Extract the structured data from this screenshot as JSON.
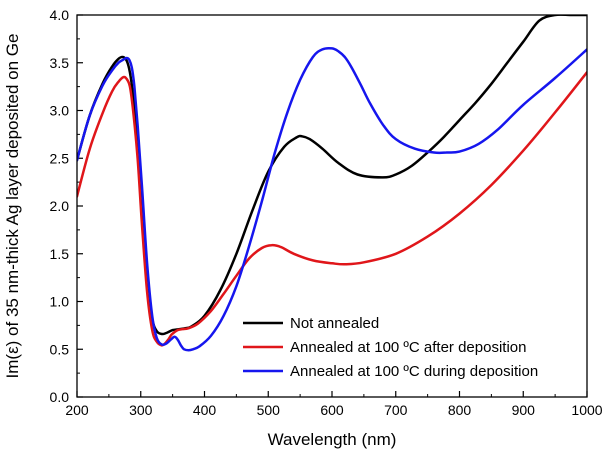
{
  "chart_data": {
    "type": "line",
    "title": "",
    "xlabel": "Wavelength (nm)",
    "ylabel": "Im(ε) of 35 nm-thick Ag layer deposited on Ge",
    "xlim": [
      200,
      1000
    ],
    "ylim": [
      0.0,
      4.0
    ],
    "xticks": [
      200,
      300,
      400,
      500,
      600,
      700,
      800,
      900,
      1000
    ],
    "yticks": [
      0.0,
      0.5,
      1.0,
      1.5,
      2.0,
      2.5,
      3.0,
      3.5,
      4.0
    ],
    "xtick_labels": [
      "200",
      "300",
      "400",
      "500",
      "600",
      "700",
      "800",
      "900",
      "1000"
    ],
    "ytick_labels": [
      "0.0",
      "0.5",
      "1.0",
      "1.5",
      "2.0",
      "2.5",
      "3.0",
      "3.5",
      "4.0"
    ],
    "legend_position": "bottom-right",
    "series": [
      {
        "name": "Not annealed",
        "color": "#000000",
        "x": [
          200,
          220,
          240,
          255,
          265,
          272,
          278,
          283,
          288,
          295,
          302,
          310,
          318,
          325,
          333,
          340,
          350,
          360,
          370,
          380,
          400,
          425,
          450,
          475,
          500,
          525,
          545,
          553,
          565,
          585,
          610,
          640,
          680,
          700,
          725,
          750,
          775,
          800,
          825,
          850,
          875,
          900,
          925,
          950,
          975,
          1000
        ],
        "y": [
          2.48,
          2.95,
          3.28,
          3.46,
          3.54,
          3.56,
          3.52,
          3.4,
          3.15,
          2.6,
          1.9,
          1.2,
          0.82,
          0.69,
          0.66,
          0.67,
          0.7,
          0.71,
          0.72,
          0.74,
          0.85,
          1.12,
          1.5,
          1.95,
          2.36,
          2.62,
          2.72,
          2.73,
          2.7,
          2.6,
          2.45,
          2.33,
          2.3,
          2.33,
          2.42,
          2.56,
          2.72,
          2.9,
          3.08,
          3.28,
          3.5,
          3.72,
          3.94,
          4.0,
          4.0,
          4.0
        ]
      },
      {
        "name": "Annealed at 100 ºC after deposition",
        "color": "#e0161a",
        "x": [
          200,
          220,
          240,
          255,
          265,
          273,
          278,
          283,
          288,
          295,
          302,
          310,
          318,
          325,
          333,
          338,
          343,
          348,
          353,
          358,
          365,
          375,
          390,
          410,
          430,
          450,
          470,
          490,
          505,
          520,
          540,
          570,
          600,
          620,
          650,
          700,
          750,
          800,
          850,
          900,
          950,
          1000
        ],
        "y": [
          2.1,
          2.6,
          2.97,
          3.2,
          3.3,
          3.35,
          3.33,
          3.25,
          3.0,
          2.5,
          1.8,
          1.1,
          0.7,
          0.58,
          0.54,
          0.56,
          0.6,
          0.65,
          0.68,
          0.7,
          0.71,
          0.72,
          0.77,
          0.9,
          1.08,
          1.27,
          1.45,
          1.56,
          1.59,
          1.57,
          1.5,
          1.43,
          1.4,
          1.39,
          1.41,
          1.5,
          1.68,
          1.92,
          2.22,
          2.58,
          2.98,
          3.4
        ]
      },
      {
        "name": "Annealed at 100 ºC during deposition",
        "color": "#1616ee",
        "x": [
          200,
          220,
          240,
          255,
          265,
          272,
          278,
          282,
          286,
          290,
          295,
          302,
          310,
          318,
          325,
          333,
          340,
          347,
          353,
          358,
          363,
          368,
          375,
          382,
          392,
          410,
          430,
          450,
          470,
          490,
          510,
          530,
          550,
          570,
          585,
          600,
          610,
          620,
          630,
          645,
          660,
          680,
          700,
          730,
          760,
          780,
          800,
          830,
          860,
          900,
          950,
          1000
        ],
        "y": [
          2.48,
          2.95,
          3.26,
          3.42,
          3.5,
          3.53,
          3.55,
          3.53,
          3.45,
          3.25,
          2.85,
          2.2,
          1.4,
          0.85,
          0.62,
          0.55,
          0.56,
          0.6,
          0.63,
          0.6,
          0.54,
          0.5,
          0.49,
          0.5,
          0.53,
          0.64,
          0.85,
          1.16,
          1.58,
          2.05,
          2.55,
          2.98,
          3.32,
          3.56,
          3.64,
          3.65,
          3.62,
          3.56,
          3.46,
          3.27,
          3.07,
          2.85,
          2.7,
          2.6,
          2.56,
          2.56,
          2.57,
          2.65,
          2.8,
          3.06,
          3.34,
          3.64
        ]
      }
    ]
  }
}
